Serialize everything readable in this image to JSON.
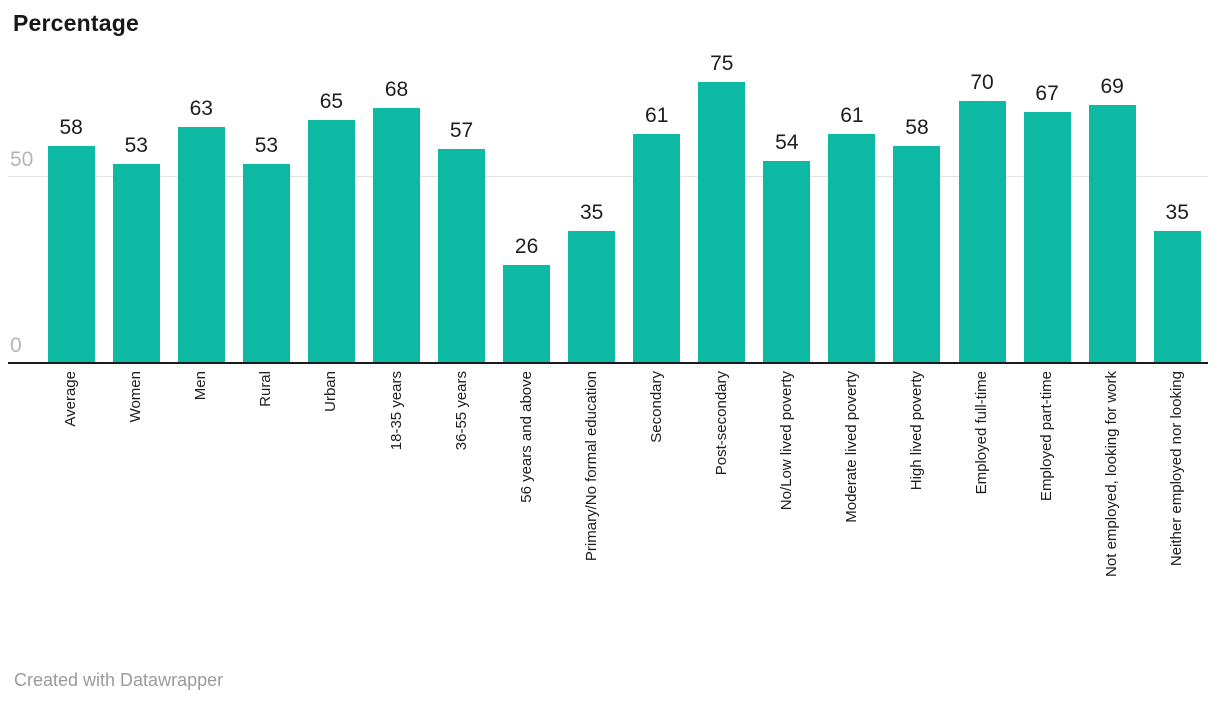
{
  "header": {
    "title": "Percentage"
  },
  "footer": {
    "text": "Created with Datawrapper"
  },
  "chart_data": {
    "type": "bar",
    "title": "Percentage",
    "xlabel": "",
    "ylabel": "Percentage",
    "categories": [
      "Average",
      "Women",
      "Men",
      "Rural",
      "Urban",
      "18-35 years",
      "36-55 years",
      "56 years and above",
      "Primary/No formal education",
      "Secondary",
      "Post-secondary",
      "No/Low lived poverty",
      "Moderate lived poverty",
      "High lived poverty",
      "Employed full-time",
      "Employed part-time",
      "Not employed, looking for work",
      "Neither employed nor looking"
    ],
    "values": [
      58,
      53,
      63,
      53,
      65,
      68,
      57,
      26,
      35,
      61,
      75,
      54,
      61,
      58,
      70,
      67,
      69,
      35
    ],
    "y_ticks": [
      0,
      50
    ],
    "ylim": [
      0,
      80
    ],
    "grid": "horizontal-at-50-and-0",
    "legend": "none",
    "value_labels": true,
    "colors": {
      "bar": "#0db9a3",
      "value_label": "#1d1d1d",
      "category_label": "#1d1d1d",
      "tick_label": "#b5b5b5",
      "gridline": "#e3e3e3",
      "axis": "#1a1a1a",
      "title": "#181818",
      "footer": "#9b9b9b"
    }
  }
}
